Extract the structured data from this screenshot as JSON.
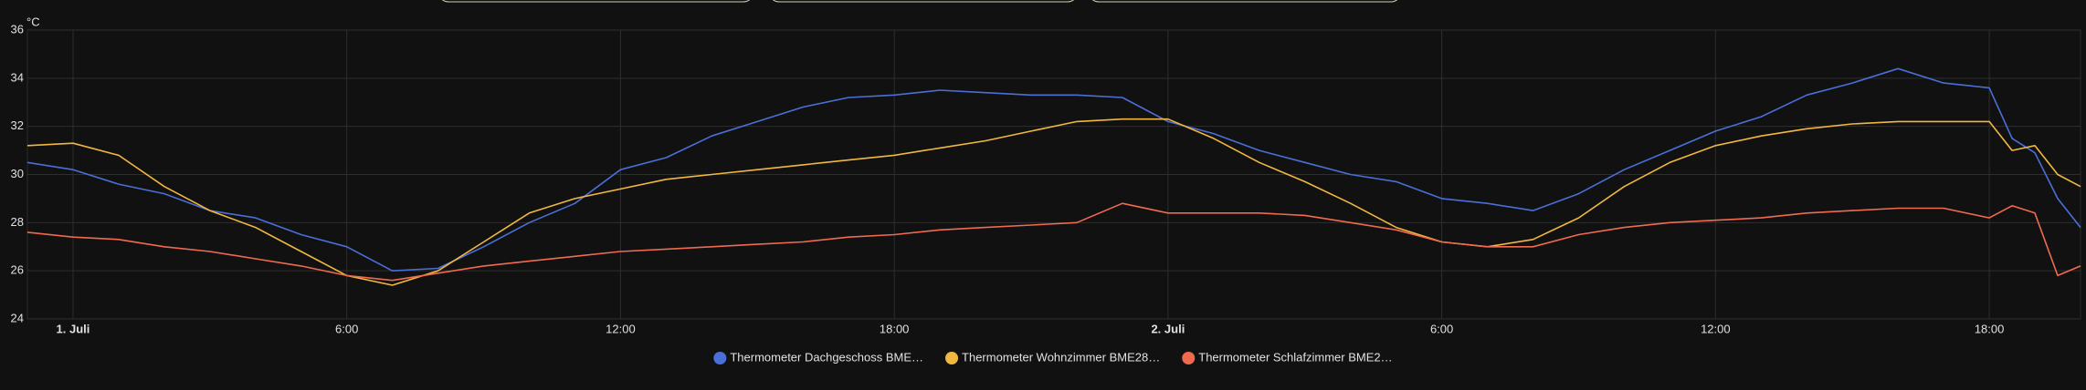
{
  "chart_data": {
    "type": "line",
    "ylabel": "°C",
    "x": [
      -1,
      0,
      1,
      2,
      3,
      4,
      5,
      6,
      7,
      8,
      9,
      10,
      11,
      12,
      13,
      14,
      15,
      16,
      17,
      18,
      19,
      20,
      21,
      22,
      23,
      24,
      25,
      26,
      27,
      28,
      29,
      30,
      31,
      32,
      33,
      34,
      35,
      36,
      37,
      38,
      39,
      40,
      41,
      42,
      42.5,
      43,
      43.5,
      44
    ],
    "xlim": [
      -1,
      44
    ],
    "xticks": [
      {
        "value": 0,
        "label": "1. Juli"
      },
      {
        "value": 6,
        "label": "6:00"
      },
      {
        "value": 12,
        "label": "12:00"
      },
      {
        "value": 18,
        "label": "18:00"
      },
      {
        "value": 24,
        "label": "2. Juli"
      },
      {
        "value": 30,
        "label": "6:00"
      },
      {
        "value": 36,
        "label": "12:00"
      },
      {
        "value": 42,
        "label": "18:00"
      }
    ],
    "ylim": [
      24,
      36
    ],
    "yticks": [
      24,
      26,
      28,
      30,
      32,
      34,
      36
    ],
    "grid": true,
    "series": [
      {
        "name": "Thermometer Dachgeschoss BME…",
        "color": "#4a6fd8",
        "values": [
          30.5,
          30.2,
          29.6,
          29.2,
          28.5,
          28.2,
          27.5,
          27.0,
          26.0,
          26.1,
          27.0,
          28.0,
          28.8,
          30.2,
          30.7,
          31.6,
          32.2,
          32.8,
          33.2,
          33.3,
          33.5,
          33.4,
          33.3,
          33.3,
          33.2,
          32.2,
          31.7,
          31.0,
          30.5,
          30.0,
          29.7,
          29.0,
          28.8,
          28.5,
          29.2,
          30.2,
          31.0,
          31.8,
          32.4,
          33.3,
          33.8,
          34.4,
          33.8,
          33.6,
          31.5,
          30.9,
          29.0,
          27.8
        ]
      },
      {
        "name": "Thermometer Wohnzimmer BME28…",
        "color": "#f0b840",
        "values": [
          31.2,
          31.3,
          30.8,
          29.5,
          28.5,
          27.8,
          26.8,
          25.8,
          25.4,
          26.0,
          27.2,
          28.4,
          29.0,
          29.4,
          29.8,
          30.0,
          30.2,
          30.4,
          30.6,
          30.8,
          31.1,
          31.4,
          31.8,
          32.2,
          32.3,
          32.3,
          31.5,
          30.5,
          29.7,
          28.8,
          27.8,
          27.2,
          27.0,
          27.3,
          28.2,
          29.5,
          30.5,
          31.2,
          31.6,
          31.9,
          32.1,
          32.2,
          32.2,
          32.2,
          31.0,
          31.2,
          30.0,
          29.5
        ]
      },
      {
        "name": "Thermometer Schlafzimmer BME2…",
        "color": "#f06a50",
        "values": [
          27.6,
          27.4,
          27.3,
          27.0,
          26.8,
          26.5,
          26.2,
          25.8,
          25.6,
          25.9,
          26.2,
          26.4,
          26.6,
          26.8,
          26.9,
          27.0,
          27.1,
          27.2,
          27.4,
          27.5,
          27.7,
          27.8,
          27.9,
          28.0,
          28.8,
          28.4,
          28.4,
          28.4,
          28.3,
          28.0,
          27.7,
          27.2,
          27.0,
          27.0,
          27.5,
          27.8,
          28.0,
          28.1,
          28.2,
          28.4,
          28.5,
          28.6,
          28.6,
          28.2,
          28.7,
          28.4,
          25.8,
          26.2
        ]
      }
    ]
  }
}
